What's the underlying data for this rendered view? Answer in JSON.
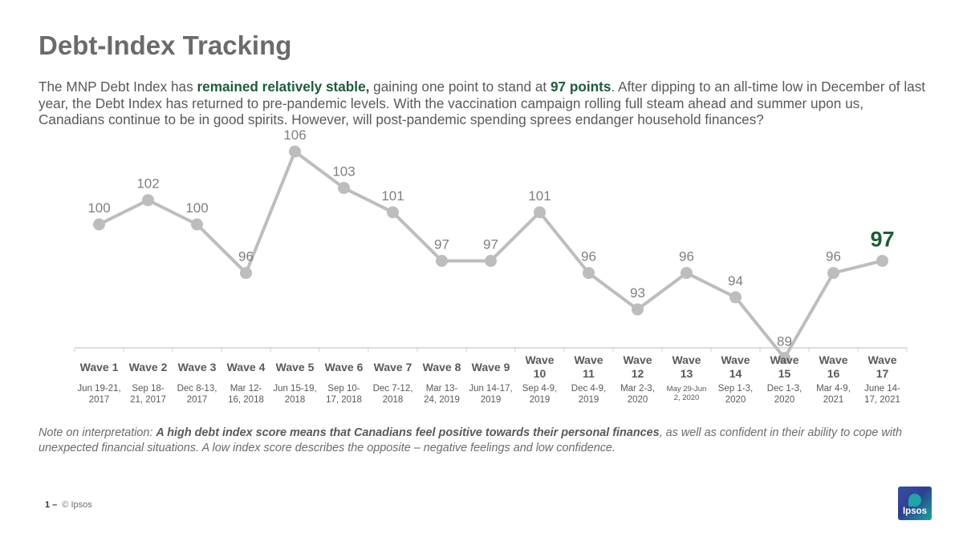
{
  "page": {
    "title": "Debt-Index Tracking",
    "intro": {
      "p1": "The MNP Debt Index has ",
      "hl1": "remained relatively stable,",
      "p2": " gaining one point to stand at ",
      "hl2": "97 points",
      "p3": ". After dipping to an all-time low in December of last year, the Debt Index has returned to pre-pandemic levels. With the vaccination campaign rolling full steam ahead and summer upon us, Canadians continue to be in good spirits. However, will post-pandemic spending sprees endanger household finances?"
    },
    "note": {
      "lead": "Note on interpretation: ",
      "bold": "A high debt index score means that Canadians feel positive towards their personal finances",
      "rest": ", as well as confident in their ability to cope with unexpected financial situations. A low index score describes the opposite – negative feelings and low confidence."
    },
    "footer": {
      "page_number": "1 –",
      "copyright": "© Ipsos"
    },
    "logo_text": "Ipsos"
  },
  "colors": {
    "line": "#bdbdbd",
    "label": "#7f7f7f",
    "highlight": "#1e5c3a",
    "axis": "#d0d0d0",
    "category": "#595959"
  },
  "chart_data": {
    "type": "line",
    "categories": [
      "Wave 1",
      "Wave 2",
      "Wave 3",
      "Wave 4",
      "Wave 5",
      "Wave 6",
      "Wave 7",
      "Wave 8",
      "Wave 9",
      "Wave 10",
      "Wave 11",
      "Wave 12",
      "Wave 13",
      "Wave 14",
      "Wave 15",
      "Wave 16",
      "Wave 17"
    ],
    "dates": [
      "Jun 19-21, 2017",
      "Sep 18-21, 2017",
      "Dec 8-13, 2017",
      "Mar 12-16, 2018",
      "Jun 15-19, 2018",
      "Sep 10-17, 2018",
      "Dec 7-12, 2018",
      "Mar 13-24, 2019",
      "Jun 14-17, 2019",
      "Sep 4-9, 2019",
      "Dec 4-9, 2019",
      "Mar 2-3, 2020",
      "May 29-Jun 2, 2020",
      "Sep 1-3, 2020",
      "Dec 1-3, 2020",
      "Mar 4-9, 2021",
      "June 14-17, 2021"
    ],
    "values": [
      100,
      102,
      100,
      96,
      106,
      103,
      101,
      97,
      97,
      101,
      96,
      93,
      96,
      94,
      89,
      96,
      97
    ],
    "highlight_index": 16,
    "grid": false,
    "legend": "none"
  }
}
